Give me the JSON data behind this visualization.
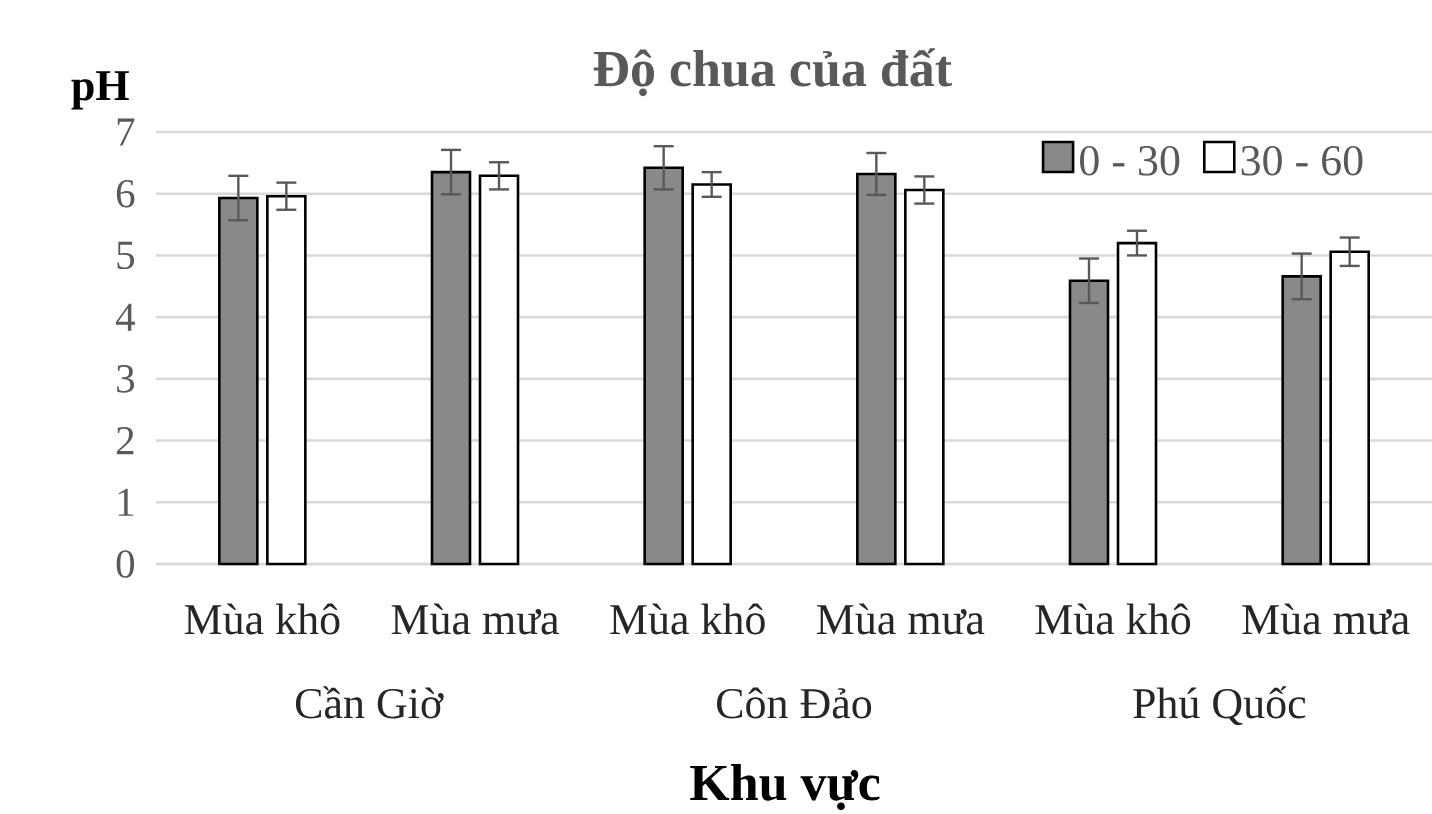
{
  "chart_data": {
    "type": "bar",
    "title": "Độ chua của đất",
    "ylabel": "pH",
    "xlabel": "Khu vực",
    "categories": [
      "Mùa khô",
      "Mùa mưa",
      "Mùa khô",
      "Mùa mưa",
      "Mùa khô",
      "Mùa mưa"
    ],
    "series": [
      {
        "name": "0 - 30",
        "color": "#898989",
        "values": [
          5.93,
          6.35,
          6.42,
          6.32,
          4.59,
          4.66
        ],
        "errors": [
          0.36,
          0.36,
          0.35,
          0.34,
          0.36,
          0.37
        ]
      },
      {
        "name": "30 - 60",
        "color": "#ffffff",
        "values": [
          5.96,
          6.29,
          6.15,
          6.06,
          5.2,
          5.06
        ],
        "errors": [
          0.22,
          0.22,
          0.2,
          0.22,
          0.2,
          0.23
        ]
      }
    ],
    "ylim": [
      0,
      7
    ],
    "yticks": [
      0,
      1,
      2,
      3,
      4,
      5,
      6,
      7
    ],
    "grid": "y",
    "legend": "top right",
    "annotations": [
      "Cần Giờ",
      "Côn Đảo",
      "Phú Quốc"
    ]
  }
}
